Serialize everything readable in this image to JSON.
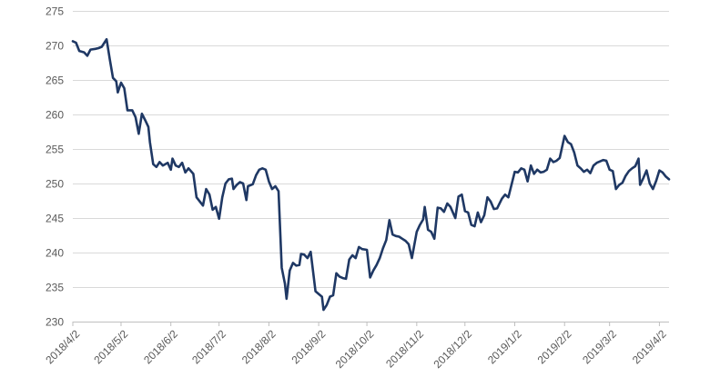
{
  "chart_data": {
    "type": "line",
    "title": "",
    "xlabel": "",
    "ylabel": "",
    "ylim": [
      230,
      275
    ],
    "yticks": [
      230,
      235,
      240,
      245,
      250,
      255,
      260,
      265,
      270,
      275
    ],
    "grid": true,
    "legend": "none",
    "line_color": "#1f3864",
    "xticks": [
      "2018/4/2",
      "2018/5/2",
      "2018/6/2",
      "2018/7/2",
      "2018/8/2",
      "2018/9/2",
      "2018/10/2",
      "2018/11/2",
      "2018/12/2",
      "2019/1/2",
      "2019/2/2",
      "2019/3/2",
      "2019/4/2"
    ],
    "series": [
      {
        "points": [
          [
            "2018/4/2",
            270.6
          ],
          [
            "2018/4/4",
            270.4
          ],
          [
            "2018/4/6",
            269.2
          ],
          [
            "2018/4/9",
            269.0
          ],
          [
            "2018/4/11",
            268.5
          ],
          [
            "2018/4/13",
            269.4
          ],
          [
            "2018/4/16",
            269.5
          ],
          [
            "2018/4/18",
            269.6
          ],
          [
            "2018/4/20",
            269.8
          ],
          [
            "2018/4/23",
            270.9
          ],
          [
            "2018/4/25",
            268.0
          ],
          [
            "2018/4/27",
            265.3
          ],
          [
            "2018/4/29",
            264.8
          ],
          [
            "2018/4/30",
            263.2
          ],
          [
            "2018/5/2",
            264.6
          ],
          [
            "2018/5/4",
            263.8
          ],
          [
            "2018/5/6",
            260.6
          ],
          [
            "2018/5/9",
            260.6
          ],
          [
            "2018/5/11",
            259.6
          ],
          [
            "2018/5/13",
            257.2
          ],
          [
            "2018/5/15",
            260.1
          ],
          [
            "2018/5/17",
            259.2
          ],
          [
            "2018/5/19",
            258.2
          ],
          [
            "2018/5/20",
            256.0
          ],
          [
            "2018/5/22",
            252.8
          ],
          [
            "2018/5/24",
            252.4
          ],
          [
            "2018/5/26",
            253.1
          ],
          [
            "2018/5/28",
            252.6
          ],
          [
            "2018/5/31",
            253.0
          ],
          [
            "2018/6/2",
            252.0
          ],
          [
            "2018/6/3",
            253.6
          ],
          [
            "2018/6/5",
            252.6
          ],
          [
            "2018/6/7",
            252.4
          ],
          [
            "2018/6/9",
            253.0
          ],
          [
            "2018/6/11",
            251.6
          ],
          [
            "2018/6/13",
            252.2
          ],
          [
            "2018/6/16",
            251.4
          ],
          [
            "2018/6/18",
            248.0
          ],
          [
            "2018/6/20",
            247.4
          ],
          [
            "2018/6/22",
            246.8
          ],
          [
            "2018/6/24",
            249.2
          ],
          [
            "2018/6/26",
            248.4
          ],
          [
            "2018/6/28",
            246.2
          ],
          [
            "2018/6/30",
            246.6
          ],
          [
            "2018/7/2",
            244.9
          ],
          [
            "2018/7/4",
            248.0
          ],
          [
            "2018/7/6",
            250.0
          ],
          [
            "2018/7/8",
            250.6
          ],
          [
            "2018/7/10",
            250.7
          ],
          [
            "2018/7/11",
            249.2
          ],
          [
            "2018/7/13",
            249.8
          ],
          [
            "2018/7/15",
            250.2
          ],
          [
            "2018/7/17",
            250.0
          ],
          [
            "2018/7/19",
            247.6
          ],
          [
            "2018/7/20",
            249.6
          ],
          [
            "2018/7/23",
            249.9
          ],
          [
            "2018/7/25",
            251.2
          ],
          [
            "2018/7/27",
            252.0
          ],
          [
            "2018/7/29",
            252.2
          ],
          [
            "2018/7/31",
            252.0
          ],
          [
            "2018/8/2",
            250.3
          ],
          [
            "2018/8/4",
            249.2
          ],
          [
            "2018/8/6",
            249.6
          ],
          [
            "2018/8/8",
            248.9
          ],
          [
            "2018/8/10",
            237.8
          ],
          [
            "2018/8/12",
            235.5
          ],
          [
            "2018/8/13",
            233.3
          ],
          [
            "2018/8/15",
            237.4
          ],
          [
            "2018/8/17",
            238.5
          ],
          [
            "2018/8/19",
            238.1
          ],
          [
            "2018/8/21",
            238.2
          ],
          [
            "2018/8/22",
            239.8
          ],
          [
            "2018/8/24",
            239.7
          ],
          [
            "2018/8/26",
            239.2
          ],
          [
            "2018/8/28",
            240.1
          ],
          [
            "2018/8/31",
            234.4
          ],
          [
            "2018/9/2",
            234.0
          ],
          [
            "2018/9/4",
            233.6
          ],
          [
            "2018/9/5",
            231.7
          ],
          [
            "2018/9/7",
            232.4
          ],
          [
            "2018/9/9",
            233.6
          ],
          [
            "2018/9/11",
            233.8
          ],
          [
            "2018/9/13",
            237.0
          ],
          [
            "2018/9/15",
            236.5
          ],
          [
            "2018/9/17",
            236.3
          ],
          [
            "2018/9/19",
            236.2
          ],
          [
            "2018/9/21",
            239.0
          ],
          [
            "2018/9/23",
            239.6
          ],
          [
            "2018/9/25",
            239.2
          ],
          [
            "2018/9/27",
            240.8
          ],
          [
            "2018/9/29",
            240.5
          ],
          [
            "2018/10/2",
            240.4
          ],
          [
            "2018/10/4",
            236.4
          ],
          [
            "2018/10/6",
            237.4
          ],
          [
            "2018/10/8",
            238.2
          ],
          [
            "2018/10/10",
            239.2
          ],
          [
            "2018/10/12",
            240.6
          ],
          [
            "2018/10/14",
            241.8
          ],
          [
            "2018/10/16",
            244.7
          ],
          [
            "2018/10/18",
            242.6
          ],
          [
            "2018/10/20",
            242.4
          ],
          [
            "2018/10/22",
            242.3
          ],
          [
            "2018/10/24",
            242.0
          ],
          [
            "2018/10/26",
            241.7
          ],
          [
            "2018/10/28",
            241.2
          ],
          [
            "2018/10/30",
            239.2
          ],
          [
            "2018/11/2",
            243.0
          ],
          [
            "2018/11/4",
            244.0
          ],
          [
            "2018/11/6",
            244.8
          ],
          [
            "2018/11/7",
            246.6
          ],
          [
            "2018/11/9",
            243.3
          ],
          [
            "2018/11/11",
            243.0
          ],
          [
            "2018/11/13",
            242.0
          ],
          [
            "2018/11/15",
            246.5
          ],
          [
            "2018/11/17",
            246.4
          ],
          [
            "2018/11/19",
            245.9
          ],
          [
            "2018/11/21",
            247.1
          ],
          [
            "2018/11/23",
            246.6
          ],
          [
            "2018/11/26",
            245.0
          ],
          [
            "2018/11/28",
            248.1
          ],
          [
            "2018/11/30",
            248.4
          ],
          [
            "2018/12/2",
            246.0
          ],
          [
            "2018/12/4",
            245.8
          ],
          [
            "2018/12/6",
            244.0
          ],
          [
            "2018/12/8",
            243.8
          ],
          [
            "2018/12/10",
            245.8
          ],
          [
            "2018/12/12",
            244.4
          ],
          [
            "2018/12/14",
            245.4
          ],
          [
            "2018/12/16",
            248.0
          ],
          [
            "2018/12/18",
            247.4
          ],
          [
            "2018/12/20",
            246.3
          ],
          [
            "2018/12/22",
            246.4
          ],
          [
            "2018/12/25",
            247.8
          ],
          [
            "2018/12/27",
            248.4
          ],
          [
            "2018/12/29",
            248.0
          ],
          [
            "2019/1/2",
            251.7
          ],
          [
            "2019/1/4",
            251.6
          ],
          [
            "2019/1/6",
            252.2
          ],
          [
            "2019/1/8",
            252.0
          ],
          [
            "2019/1/10",
            250.3
          ],
          [
            "2019/1/12",
            252.6
          ],
          [
            "2019/1/14",
            251.4
          ],
          [
            "2019/1/16",
            252.0
          ],
          [
            "2019/1/18",
            251.6
          ],
          [
            "2019/1/20",
            251.7
          ],
          [
            "2019/1/22",
            252.0
          ],
          [
            "2019/1/24",
            253.6
          ],
          [
            "2019/1/26",
            253.1
          ],
          [
            "2019/1/28",
            253.3
          ],
          [
            "2019/1/30",
            253.7
          ],
          [
            "2019/2/2",
            256.9
          ],
          [
            "2019/2/4",
            256.0
          ],
          [
            "2019/2/6",
            255.7
          ],
          [
            "2019/2/8",
            254.5
          ],
          [
            "2019/2/10",
            252.6
          ],
          [
            "2019/2/12",
            252.2
          ],
          [
            "2019/2/14",
            251.7
          ],
          [
            "2019/2/16",
            252.0
          ],
          [
            "2019/2/18",
            251.5
          ],
          [
            "2019/2/20",
            252.6
          ],
          [
            "2019/2/22",
            253.0
          ],
          [
            "2019/2/24",
            253.2
          ],
          [
            "2019/2/26",
            253.4
          ],
          [
            "2019/2/28",
            253.3
          ],
          [
            "2019/3/2",
            252.0
          ],
          [
            "2019/3/4",
            251.8
          ],
          [
            "2019/3/6",
            249.2
          ],
          [
            "2019/3/8",
            249.8
          ],
          [
            "2019/3/10",
            250.1
          ],
          [
            "2019/3/12",
            251.1
          ],
          [
            "2019/3/14",
            251.8
          ],
          [
            "2019/3/16",
            252.2
          ],
          [
            "2019/3/18",
            252.5
          ],
          [
            "2019/3/20",
            253.6
          ],
          [
            "2019/3/21",
            249.8
          ],
          [
            "2019/3/23",
            250.8
          ],
          [
            "2019/3/25",
            251.9
          ],
          [
            "2019/3/27",
            250.0
          ],
          [
            "2019/3/29",
            249.2
          ],
          [
            "2019/3/31",
            250.4
          ],
          [
            "2019/4/2",
            251.9
          ],
          [
            "2019/4/4",
            251.6
          ],
          [
            "2019/4/6",
            251.0
          ],
          [
            "2019/4/8",
            250.6
          ]
        ]
      }
    ]
  }
}
